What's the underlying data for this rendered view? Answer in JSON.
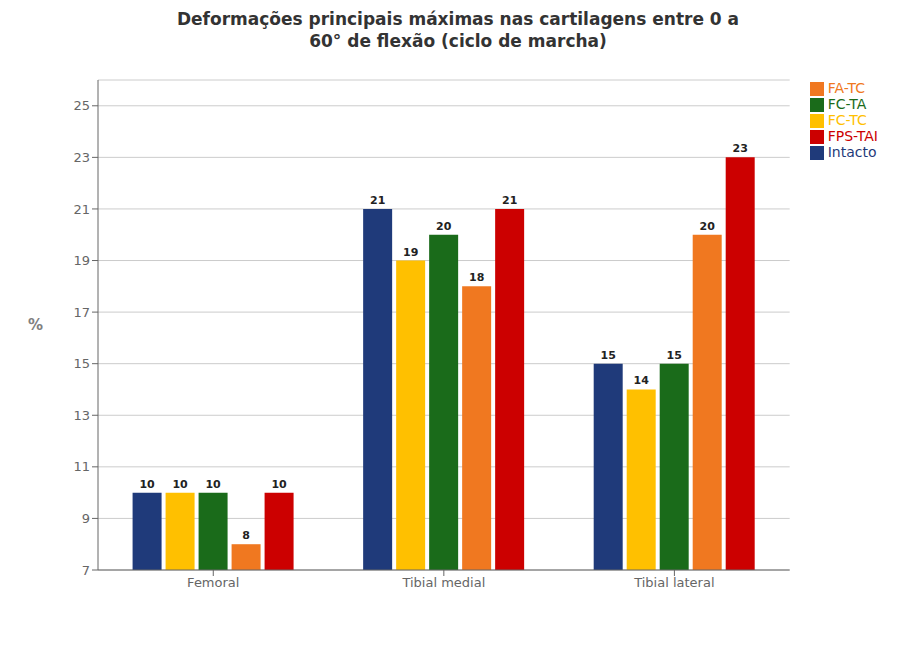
{
  "chart_data": {
    "type": "bar",
    "title": "Deformações principais máximas nas cartilagens entre 0 a\n60° de flexão (ciclo de marcha)",
    "ylabel": "%",
    "categories": [
      "Femoral",
      "Tibial medial",
      "Tibial lateral"
    ],
    "series": [
      {
        "name": "Intacto",
        "color": "#1f3a7a",
        "values": [
          10,
          21,
          15
        ]
      },
      {
        "name": "FC-TC",
        "color": "#ffc000",
        "values": [
          10,
          19,
          14
        ]
      },
      {
        "name": "FC-TA",
        "color": "#1a6b1a",
        "values": [
          10,
          20,
          15
        ]
      },
      {
        "name": "FA-TC",
        "color": "#f07820",
        "values": [
          8,
          18,
          20
        ]
      },
      {
        "name": "FPS-TAI",
        "color": "#cc0000",
        "values": [
          10,
          21,
          23
        ]
      }
    ],
    "ylim": [
      7,
      26
    ],
    "yticks": [
      7,
      9,
      11,
      13,
      15,
      17,
      19,
      21,
      23,
      25
    ],
    "grid": true,
    "legend": "right",
    "data_labels": true
  }
}
